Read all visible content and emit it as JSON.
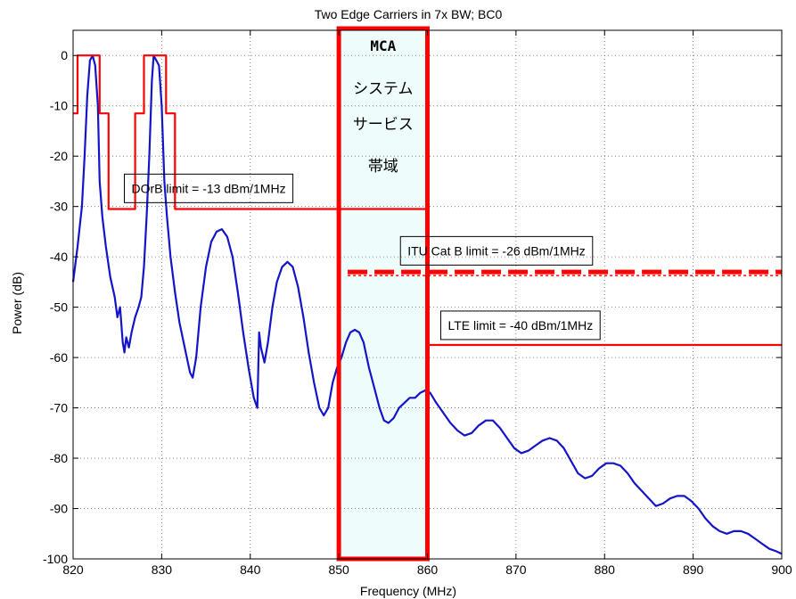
{
  "chart_data": {
    "type": "line",
    "title": "Two Edge Carriers in 7x BW; BC0",
    "xlabel": "Frequency (MHz)",
    "ylabel": "Power (dB)",
    "xlim": [
      820,
      900
    ],
    "ylim": [
      -100,
      5
    ],
    "xticks": [
      820,
      830,
      840,
      850,
      860,
      870,
      880,
      890,
      900
    ],
    "yticks": [
      0,
      -10,
      -20,
      -30,
      -40,
      -50,
      -60,
      -70,
      -80,
      -90,
      -100
    ],
    "grid": true,
    "series": [
      {
        "color": "#1414c8",
        "points": [
          [
            820.0,
            -45
          ],
          [
            820.5,
            -38
          ],
          [
            821.0,
            -30
          ],
          [
            821.3,
            -20
          ],
          [
            821.6,
            -8
          ],
          [
            821.9,
            -1
          ],
          [
            822.2,
            0
          ],
          [
            822.5,
            -2
          ],
          [
            822.8,
            -10
          ],
          [
            823.0,
            -25
          ],
          [
            823.3,
            -32
          ],
          [
            823.7,
            -38
          ],
          [
            824.2,
            -44
          ],
          [
            824.7,
            -48
          ],
          [
            825.0,
            -52
          ],
          [
            825.3,
            -50
          ],
          [
            825.6,
            -57
          ],
          [
            825.8,
            -59
          ],
          [
            826.0,
            -56
          ],
          [
            826.3,
            -58
          ],
          [
            826.6,
            -55
          ],
          [
            827.0,
            -52
          ],
          [
            827.4,
            -50
          ],
          [
            827.7,
            -48
          ],
          [
            828.0,
            -42
          ],
          [
            828.3,
            -32
          ],
          [
            828.6,
            -20
          ],
          [
            828.9,
            -5
          ],
          [
            829.1,
            0
          ],
          [
            829.4,
            -1
          ],
          [
            829.7,
            -2
          ],
          [
            830.0,
            -10
          ],
          [
            830.3,
            -25
          ],
          [
            830.6,
            -32
          ],
          [
            831.0,
            -40
          ],
          [
            831.5,
            -47
          ],
          [
            832.0,
            -53
          ],
          [
            832.6,
            -58
          ],
          [
            833.2,
            -63
          ],
          [
            833.5,
            -64
          ],
          [
            833.9,
            -60
          ],
          [
            834.4,
            -50
          ],
          [
            835.0,
            -42
          ],
          [
            835.6,
            -37
          ],
          [
            836.2,
            -35
          ],
          [
            836.8,
            -34.5
          ],
          [
            837.4,
            -36
          ],
          [
            838.0,
            -40
          ],
          [
            838.6,
            -47
          ],
          [
            839.2,
            -55
          ],
          [
            839.8,
            -62
          ],
          [
            840.4,
            -68
          ],
          [
            840.8,
            -70
          ],
          [
            841.0,
            -55
          ],
          [
            841.2,
            -58
          ],
          [
            841.6,
            -61
          ],
          [
            842.0,
            -57
          ],
          [
            842.5,
            -50
          ],
          [
            843.0,
            -45
          ],
          [
            843.6,
            -42
          ],
          [
            844.2,
            -41
          ],
          [
            844.8,
            -42
          ],
          [
            845.4,
            -46
          ],
          [
            846.0,
            -52
          ],
          [
            846.6,
            -59
          ],
          [
            847.2,
            -65
          ],
          [
            847.8,
            -70
          ],
          [
            848.3,
            -71.5
          ],
          [
            848.8,
            -70
          ],
          [
            849.3,
            -65
          ],
          [
            849.8,
            -62
          ],
          [
            850.3,
            -60
          ],
          [
            850.8,
            -57
          ],
          [
            851.3,
            -55
          ],
          [
            851.8,
            -54.5
          ],
          [
            852.3,
            -55
          ],
          [
            852.8,
            -57
          ],
          [
            853.4,
            -62
          ],
          [
            854.0,
            -66
          ],
          [
            854.6,
            -70
          ],
          [
            855.1,
            -72.5
          ],
          [
            855.6,
            -73
          ],
          [
            856.2,
            -72
          ],
          [
            856.8,
            -70
          ],
          [
            857.4,
            -69
          ],
          [
            858.0,
            -68
          ],
          [
            858.6,
            -68
          ],
          [
            859.2,
            -67
          ],
          [
            859.8,
            -66.5
          ],
          [
            860.3,
            -67
          ],
          [
            861.0,
            -69
          ],
          [
            861.8,
            -71
          ],
          [
            862.6,
            -73
          ],
          [
            863.4,
            -74.5
          ],
          [
            864.2,
            -75.5
          ],
          [
            865.0,
            -75
          ],
          [
            865.8,
            -73.5
          ],
          [
            866.6,
            -72.5
          ],
          [
            867.4,
            -72.5
          ],
          [
            868.2,
            -74
          ],
          [
            869.0,
            -76
          ],
          [
            869.8,
            -78
          ],
          [
            870.6,
            -79
          ],
          [
            871.4,
            -78.5
          ],
          [
            872.2,
            -77.5
          ],
          [
            873.0,
            -76.5
          ],
          [
            873.8,
            -76
          ],
          [
            874.6,
            -76.5
          ],
          [
            875.4,
            -78
          ],
          [
            876.2,
            -80.5
          ],
          [
            877.0,
            -83
          ],
          [
            877.8,
            -84
          ],
          [
            878.6,
            -83.5
          ],
          [
            879.4,
            -82
          ],
          [
            880.2,
            -81
          ],
          [
            881.0,
            -81
          ],
          [
            881.8,
            -81.5
          ],
          [
            882.6,
            -83
          ],
          [
            883.4,
            -85
          ],
          [
            884.2,
            -86.5
          ],
          [
            885.0,
            -88
          ],
          [
            885.8,
            -89.5
          ],
          [
            886.6,
            -89
          ],
          [
            887.4,
            -88
          ],
          [
            888.2,
            -87.5
          ],
          [
            889.0,
            -87.5
          ],
          [
            889.8,
            -88.5
          ],
          [
            890.6,
            -90
          ],
          [
            891.4,
            -92
          ],
          [
            892.2,
            -93.5
          ],
          [
            893.0,
            -94.5
          ],
          [
            893.8,
            -95
          ],
          [
            894.6,
            -94.5
          ],
          [
            895.4,
            -94.5
          ],
          [
            896.2,
            -95
          ],
          [
            897.0,
            -96
          ],
          [
            897.8,
            -97
          ],
          [
            898.6,
            -98
          ],
          [
            899.4,
            -98.5
          ],
          [
            900.0,
            -99
          ]
        ]
      },
      {
        "color": "#ff0000",
        "points": [
          [
            820.0,
            -11.5
          ],
          [
            820.5,
            -11.5
          ],
          [
            820.5,
            0
          ],
          [
            823.0,
            0
          ],
          [
            823.0,
            -11.5
          ],
          [
            824.0,
            -11.5
          ],
          [
            824.0,
            -30.5
          ],
          [
            827.0,
            -30.5
          ],
          [
            827.0,
            -11.5
          ],
          [
            828.0,
            -11.5
          ],
          [
            828.0,
            0
          ],
          [
            830.5,
            0
          ],
          [
            830.5,
            -11.5
          ],
          [
            831.5,
            -11.5
          ],
          [
            831.5,
            -30.5
          ],
          [
            860.0,
            -30.5
          ]
        ]
      },
      {
        "color": "#ff0000",
        "dashed": true,
        "points": [
          [
            851.0,
            -43
          ],
          [
            900.0,
            -43
          ]
        ]
      },
      {
        "color": "#ff0000",
        "points": [
          [
            860.0,
            -57.5
          ],
          [
            900.0,
            -57.5
          ]
        ]
      }
    ],
    "band": {
      "x0": 850,
      "x1": 860,
      "fill": "#eefcfc",
      "edge": "#ff0000"
    },
    "band_label": [
      "MCA",
      "システム",
      "サービス",
      "帯域"
    ],
    "annotations": [
      {
        "text": "DOrB limit = -13 dBm/1MHz",
        "x": 835.3,
        "y": -26.4
      },
      {
        "text": "ITU Cat B limit = -26 dBm/1MHz",
        "x": 867.8,
        "y": -38.8
      },
      {
        "text": "LTE limit = -40 dBm/1MHz",
        "x": 870.5,
        "y": -53.6
      }
    ]
  }
}
